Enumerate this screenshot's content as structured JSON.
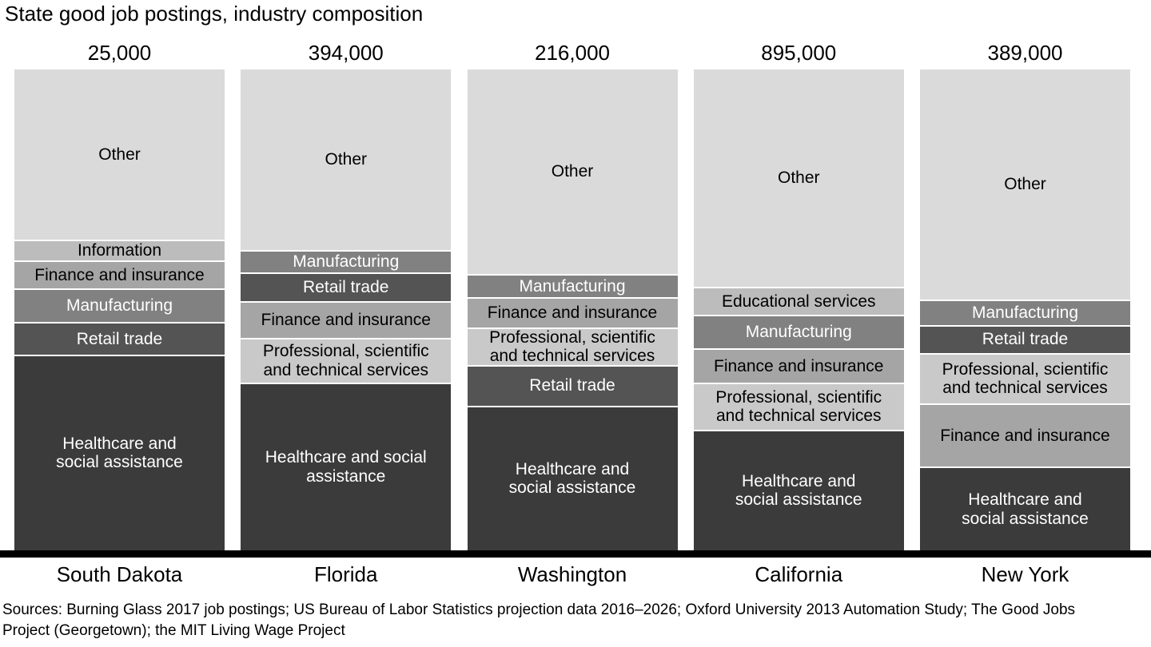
{
  "title": "State good job postings, industry composition",
  "sources": "Sources: Burning Glass 2017 job postings; US Bureau of Labor Statistics projection data 2016–2026; Oxford University 2013 Automation Study; The Good Jobs\nProject (Georgetown); the MIT Living Wage Project",
  "chart_data": {
    "type": "bar",
    "subtype": "100-percent-stacked-vertical",
    "title": "State good job postings, industry composition",
    "categories": [
      "South Dakota",
      "Florida",
      "Washington",
      "California",
      "New York"
    ],
    "totals": [
      "25,000",
      "394,000",
      "216,000",
      "895,000",
      "389,000"
    ],
    "ylim": [
      0,
      100
    ],
    "grid": false,
    "legend": "none (labels inside segments)",
    "axis_color": "#000000",
    "palette": {
      "Other": {
        "fill": "#dadada",
        "text": "#000000"
      },
      "Information": {
        "fill": "#bcbcbc",
        "text": "#000000"
      },
      "Educational services": {
        "fill": "#bcbcbc",
        "text": "#000000"
      },
      "Professional, scientific and technical services": {
        "fill": "#c9c9c9",
        "text": "#000000"
      },
      "Finance and insurance": {
        "fill": "#a5a5a5",
        "text": "#000000"
      },
      "Manufacturing": {
        "fill": "#818181",
        "text": "#ffffff"
      },
      "Retail trade": {
        "fill": "#545454",
        "text": "#ffffff"
      },
      "Healthcare and social assistance": {
        "fill": "#3b3b3b",
        "text": "#ffffff"
      }
    },
    "bars": [
      {
        "state": "South Dakota",
        "total": "25,000",
        "segments": [
          {
            "industry": "Other",
            "pct": 35.4,
            "label": "Other"
          },
          {
            "industry": "Information",
            "pct": 4.3,
            "label": "Information"
          },
          {
            "industry": "Finance and insurance",
            "pct": 5.8,
            "label": "Finance and insurance"
          },
          {
            "industry": "Manufacturing",
            "pct": 7.0,
            "label": "Manufacturing"
          },
          {
            "industry": "Retail trade",
            "pct": 6.8,
            "label": "Retail trade"
          },
          {
            "industry": "Healthcare and social assistance",
            "pct": 40.7,
            "label": "Healthcare and\nsocial assistance"
          }
        ]
      },
      {
        "state": "Florida",
        "total": "394,000",
        "segments": [
          {
            "industry": "Other",
            "pct": 37.5,
            "label": "Other"
          },
          {
            "industry": "Manufacturing",
            "pct": 4.7,
            "label": "Manufacturing"
          },
          {
            "industry": "Retail trade",
            "pct": 6.0,
            "label": "Retail trade"
          },
          {
            "industry": "Finance and insurance",
            "pct": 7.6,
            "label": "Finance and insurance"
          },
          {
            "industry": "Professional, scientific and technical services",
            "pct": 9.3,
            "label": "Professional, scientific\nand technical services"
          },
          {
            "industry": "Healthcare and social assistance",
            "pct": 34.9,
            "label": "Healthcare and social\nassistance"
          }
        ]
      },
      {
        "state": "Washington",
        "total": "216,000",
        "segments": [
          {
            "industry": "Other",
            "pct": 42.5,
            "label": "Other"
          },
          {
            "industry": "Manufacturing",
            "pct": 4.8,
            "label": "Manufacturing"
          },
          {
            "industry": "Finance and insurance",
            "pct": 6.3,
            "label": "Finance and insurance"
          },
          {
            "industry": "Professional, scientific and technical services",
            "pct": 7.8,
            "label": "Professional, scientific\nand technical services"
          },
          {
            "industry": "Retail trade",
            "pct": 8.5,
            "label": "Retail trade"
          },
          {
            "industry": "Healthcare and social assistance",
            "pct": 30.1,
            "label": "Healthcare and\nsocial assistance"
          }
        ]
      },
      {
        "state": "California",
        "total": "895,000",
        "segments": [
          {
            "industry": "Other",
            "pct": 45.2,
            "label": "Other"
          },
          {
            "industry": "Educational services",
            "pct": 5.8,
            "label": "Educational services"
          },
          {
            "industry": "Manufacturing",
            "pct": 7.0,
            "label": "Manufacturing"
          },
          {
            "industry": "Finance and insurance",
            "pct": 7.1,
            "label": "Finance and insurance"
          },
          {
            "industry": "Professional, scientific and technical services",
            "pct": 9.8,
            "label": "Professional, scientific\nand technical services"
          },
          {
            "industry": "Healthcare and social assistance",
            "pct": 25.1,
            "label": "Healthcare and\nsocial assistance"
          }
        ]
      },
      {
        "state": "New York",
        "total": "389,000",
        "segments": [
          {
            "industry": "Other",
            "pct": 47.8,
            "label": "Other"
          },
          {
            "industry": "Manufacturing",
            "pct": 5.3,
            "label": "Manufacturing"
          },
          {
            "industry": "Retail trade",
            "pct": 5.8,
            "label": "Retail trade"
          },
          {
            "industry": "Professional, scientific and technical services",
            "pct": 10.6,
            "label": "Professional, scientific\nand technical services"
          },
          {
            "industry": "Finance and insurance",
            "pct": 13.1,
            "label": "Finance and insurance"
          },
          {
            "industry": "Healthcare and social assistance",
            "pct": 17.4,
            "label": "Healthcare and\nsocial assistance"
          }
        ]
      }
    ]
  }
}
